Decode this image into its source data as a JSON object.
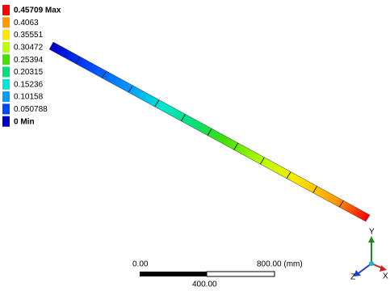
{
  "legend": {
    "entries": [
      {
        "label": "0.45709 Max",
        "color": "#ff0000"
      },
      {
        "label": "0.4063",
        "color": "#ff9a00"
      },
      {
        "label": "0.35551",
        "color": "#ffe600"
      },
      {
        "label": "0.30472",
        "color": "#b9ff00"
      },
      {
        "label": "0.25394",
        "color": "#43e000"
      },
      {
        "label": "0.20315",
        "color": "#00e07a"
      },
      {
        "label": "0.15236",
        "color": "#00e6d2"
      },
      {
        "label": "0.10158",
        "color": "#009cff"
      },
      {
        "label": "0.050788",
        "color": "#0046ff"
      },
      {
        "label": "0 Min",
        "color": "#0000c8"
      }
    ]
  },
  "scale_bar": {
    "start": "0.00",
    "end": "800.00 (mm)",
    "middle": "400.00"
  },
  "triad": {
    "y": "Y",
    "z": "Z",
    "x": "X"
  }
}
